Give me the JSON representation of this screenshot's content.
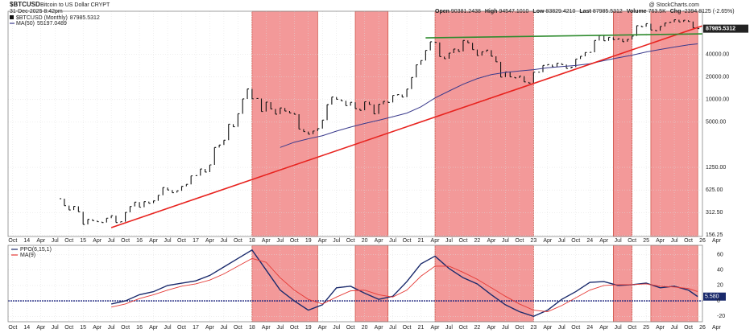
{
  "chart_data": {
    "type": "price",
    "title": "$BTCUSD",
    "subtitle": "Bitcoin to US Dollar CRYPT",
    "date": "31-Dec-2025 8:42pm",
    "watermark": "@ StockCharts.com",
    "header": [
      {
        "label": "Open",
        "value": 90381.2438
      },
      {
        "label": "High",
        "value": 94547.101,
        "value_label": "94547.1010"
      },
      {
        "label": "Low",
        "value": 83829.421,
        "value_label": "83829.4210"
      },
      {
        "label": "Last",
        "value": 87985.5312
      },
      {
        "label": "Volume",
        "value": 763500,
        "value_label": "763.5K"
      },
      {
        "label": "Chg",
        "value": -2394.8125,
        "value_label": "-2394.8125 (-2.65%)"
      }
    ],
    "name": "$BTCUSD (Monthly)",
    "last_value": 87985.5312,
    "color": "#111111",
    "x": [
      "2014-08",
      "2014-09",
      "2014-10",
      "2014-11",
      "2014-12",
      "2015-01",
      "2015-02",
      "2015-03",
      "2015-04",
      "2015-05",
      "2015-06",
      "2015-07",
      "2015-08",
      "2015-09",
      "2015-10",
      "2015-11",
      "2015-12",
      "2016-01",
      "2016-02",
      "2016-03",
      "2016-04",
      "2016-05",
      "2016-06",
      "2016-07",
      "2016-08",
      "2016-09",
      "2016-10",
      "2016-11",
      "2016-12",
      "2017-01",
      "2017-02",
      "2017-03",
      "2017-04",
      "2017-05",
      "2017-06",
      "2017-07",
      "2017-08",
      "2017-09",
      "2017-10",
      "2017-11",
      "2017-12",
      "2018-01",
      "2018-02",
      "2018-03",
      "2018-04",
      "2018-05",
      "2018-06",
      "2018-07",
      "2018-08",
      "2018-09",
      "2018-10",
      "2018-11",
      "2018-12",
      "2019-01",
      "2019-02",
      "2019-03",
      "2019-04",
      "2019-05",
      "2019-06",
      "2019-07",
      "2019-08",
      "2019-09",
      "2019-10",
      "2019-11",
      "2019-12",
      "2020-01",
      "2020-02",
      "2020-03",
      "2020-04",
      "2020-05",
      "2020-06",
      "2020-07",
      "2020-08",
      "2020-09",
      "2020-10",
      "2020-11",
      "2020-12",
      "2021-01",
      "2021-02",
      "2021-03",
      "2021-04",
      "2021-05",
      "2021-06",
      "2021-07",
      "2021-08",
      "2021-09",
      "2021-10",
      "2021-11",
      "2021-12",
      "2022-01",
      "2022-02",
      "2022-03",
      "2022-04",
      "2022-05",
      "2022-06",
      "2022-07",
      "2022-08",
      "2022-09",
      "2022-10",
      "2022-11",
      "2022-12",
      "2023-01",
      "2023-02",
      "2023-03",
      "2023-04",
      "2023-05",
      "2023-06",
      "2023-07",
      "2023-08",
      "2023-09",
      "2023-10",
      "2023-11",
      "2023-12",
      "2024-01",
      "2024-02",
      "2024-03",
      "2024-04",
      "2024-05",
      "2024-06",
      "2024-07",
      "2024-08",
      "2024-09",
      "2024-10",
      "2024-11",
      "2024-12",
      "2025-01",
      "2025-02",
      "2025-03",
      "2025-04",
      "2025-05",
      "2025-06",
      "2025-07",
      "2025-08",
      "2025-09",
      "2025-10",
      "2025-11",
      "2025-12"
    ],
    "values": [
      478,
      386,
      338,
      378,
      320,
      217,
      254,
      244,
      236,
      230,
      263,
      284,
      230,
      236,
      314,
      377,
      430,
      368,
      437,
      416,
      448,
      531,
      673,
      624,
      575,
      609,
      698,
      742,
      963,
      970,
      1190,
      1080,
      1348,
      2300,
      2480,
      2875,
      4700,
      4340,
      6460,
      10200,
      13860,
      10220,
      10330,
      6930,
      9240,
      7490,
      6390,
      7730,
      7030,
      6630,
      6370,
      4040,
      3740,
      3460,
      3810,
      4100,
      5320,
      8570,
      10820,
      10080,
      9630,
      8290,
      9200,
      7570,
      7190,
      9350,
      8600,
      6440,
      8660,
      9460,
      9140,
      11350,
      11660,
      10780,
      13800,
      19700,
      29000,
      33100,
      45200,
      58800,
      57700,
      37300,
      35000,
      41600,
      47100,
      43800,
      61300,
      57000,
      46300,
      38500,
      43200,
      45500,
      37700,
      31800,
      19900,
      23300,
      20050,
      19430,
      20500,
      17170,
      16550,
      23140,
      23150,
      28480,
      29250,
      27220,
      30480,
      29230,
      25940,
      26970,
      34670,
      37720,
      42280,
      42580,
      61200,
      71300,
      60650,
      67500,
      62700,
      64600,
      58970,
      63300,
      70200,
      96400,
      93400,
      102400,
      84400,
      82500,
      94200,
      104600,
      107100,
      115700,
      108200,
      114000,
      109500,
      90400,
      87985.5312
    ],
    "ma": {
      "name": "MA(50)",
      "last_value": 55197.0489,
      "color": "#3a3a8c",
      "x": [
        "2018-07",
        "2018-10",
        "2019-01",
        "2019-04",
        "2019-07",
        "2019-10",
        "2020-01",
        "2020-04",
        "2020-07",
        "2020-10",
        "2021-01",
        "2021-04",
        "2021-07",
        "2021-10",
        "2022-01",
        "2022-04",
        "2022-07",
        "2022-10",
        "2023-01",
        "2023-04",
        "2023-07",
        "2023-10",
        "2024-01",
        "2024-04",
        "2024-07",
        "2024-10",
        "2025-01",
        "2025-04",
        "2025-07",
        "2025-10",
        "2025-12"
      ],
      "values": [
        2300,
        2700,
        3000,
        3300,
        3800,
        4300,
        4800,
        5300,
        5900,
        6600,
        8000,
        10500,
        13000,
        16000,
        19000,
        21500,
        23000,
        24000,
        25000,
        26500,
        27500,
        28500,
        30000,
        33000,
        36000,
        39000,
        43000,
        46500,
        50000,
        53500,
        55197.0489
      ]
    },
    "log_scale": true,
    "grid": true,
    "xlim": [
      "2013-09",
      "2026-01"
    ],
    "ylim": [
      150,
      150000
    ],
    "yticks": [
      156.25,
      {
        "value": 312.5,
        "label": "312.50"
      },
      {
        "value": 625,
        "label": "625.00"
      },
      {
        "value": 1250,
        "label": "1250.00"
      },
      {
        "value": 5000,
        "label": "5000.00"
      },
      {
        "value": 10000,
        "label": "10000.00"
      },
      {
        "value": 20000,
        "label": "20000.00"
      },
      {
        "value": 40000,
        "label": "40000.00"
      }
    ],
    "xticks": [
      {
        "value": "2013-10",
        "label": "Oct"
      },
      {
        "value": "2014-01",
        "label": "14"
      },
      {
        "value": "2014-04",
        "label": "Apr"
      },
      {
        "value": "2014-07",
        "label": "Jul"
      },
      {
        "value": "2014-10",
        "label": "Oct"
      },
      {
        "value": "2015-01",
        "label": "15"
      },
      {
        "value": "2015-04",
        "label": "Apr"
      },
      {
        "value": "2015-07",
        "label": "Jul"
      },
      {
        "value": "2015-10",
        "label": "Oct"
      },
      {
        "value": "2016-01",
        "label": "16"
      },
      {
        "value": "2016-04",
        "label": "Apr"
      },
      {
        "value": "2016-07",
        "label": "Jul"
      },
      {
        "value": "2016-10",
        "label": "Oct"
      },
      {
        "value": "2017-01",
        "label": "17"
      },
      {
        "value": "2017-04",
        "label": "Apr"
      },
      {
        "value": "2017-07",
        "label": "Jul"
      },
      {
        "value": "2017-10",
        "label": "Oct"
      },
      {
        "value": "2018-01",
        "label": "18"
      },
      {
        "value": "2018-04",
        "label": "Apr"
      },
      {
        "value": "2018-07",
        "label": "Jul"
      },
      {
        "value": "2018-10",
        "label": "Oct"
      },
      {
        "value": "2019-01",
        "label": "19"
      },
      {
        "value": "2019-04",
        "label": "Apr"
      },
      {
        "value": "2019-07",
        "label": "Jul"
      },
      {
        "value": "2019-10",
        "label": "Oct"
      },
      {
        "value": "2020-01",
        "label": "20"
      },
      {
        "value": "2020-04",
        "label": "Apr"
      },
      {
        "value": "2020-07",
        "label": "Jul"
      },
      {
        "value": "2020-10",
        "label": "Oct"
      },
      {
        "value": "2021-01",
        "label": "21"
      },
      {
        "value": "2021-04",
        "label": "Apr"
      },
      {
        "value": "2021-07",
        "label": "Jul"
      },
      {
        "value": "2021-10",
        "label": "Oct"
      },
      {
        "value": "2022-01",
        "label": "22"
      },
      {
        "value": "2022-04",
        "label": "Apr"
      },
      {
        "value": "2022-07",
        "label": "Jul"
      },
      {
        "value": "2022-10",
        "label": "Oct"
      },
      {
        "value": "2023-01",
        "label": "23"
      },
      {
        "value": "2023-04",
        "label": "Apr"
      },
      {
        "value": "2023-07",
        "label": "Jul"
      },
      {
        "value": "2023-10",
        "label": "Oct"
      },
      {
        "value": "2024-01",
        "label": "24"
      },
      {
        "value": "2024-04",
        "label": "Apr"
      },
      {
        "value": "2024-07",
        "label": "Jul"
      },
      {
        "value": "2024-10",
        "label": "Oct"
      },
      {
        "value": "2025-01",
        "label": "25"
      },
      {
        "value": "2025-04",
        "label": "Apr"
      },
      {
        "value": "2025-07",
        "label": "Jul"
      },
      {
        "value": "2025-10",
        "label": "Oct"
      },
      {
        "value": "2026-01",
        "label": "26"
      },
      {
        "value": "2026-04",
        "label": "Apr"
      }
    ],
    "shaded_ranges": [
      {
        "start": "2018-01",
        "end": "2019-03"
      },
      {
        "start": "2019-11",
        "end": "2020-06"
      },
      {
        "start": "2021-04",
        "end": "2023-01"
      },
      {
        "start": "2024-06",
        "end": "2024-10"
      },
      {
        "start": "2025-02",
        "end": "2025-12"
      }
    ],
    "shade_color": "#f08080",
    "trendlines": [
      {
        "color": "#e8231f",
        "x": [
          "2015-07",
          "2026-01"
        ],
        "y": [
          197,
          96000
        ]
      },
      {
        "color": "#2e8b2e",
        "x": [
          "2021-02",
          "2026-01"
        ],
        "y": [
          66300,
          75000
        ]
      }
    ],
    "ppo": {
      "ylim": [
        -27,
        72
      ],
      "yticks": [
        -20,
        0,
        20,
        40,
        60
      ],
      "zero_color": "#1a237e",
      "last_value": 5.58,
      "last_label": "5.580",
      "series": [
        {
          "name": "PPO(6,15,1)",
          "color": "#1a2a6c",
          "x": [
            "2015-07",
            "2015-10",
            "2016-01",
            "2016-04",
            "2016-07",
            "2016-10",
            "2017-01",
            "2017-04",
            "2017-07",
            "2017-10",
            "2018-01",
            "2018-04",
            "2018-07",
            "2018-10",
            "2019-01",
            "2019-04",
            "2019-07",
            "2019-10",
            "2020-01",
            "2020-04",
            "2020-07",
            "2020-10",
            "2021-01",
            "2021-04",
            "2021-07",
            "2021-10",
            "2022-01",
            "2022-04",
            "2022-07",
            "2022-10",
            "2023-01",
            "2023-04",
            "2023-07",
            "2023-10",
            "2024-01",
            "2024-04",
            "2024-07",
            "2024-10",
            "2025-01",
            "2025-04",
            "2025-07",
            "2025-10",
            "2025-12"
          ],
          "values": [
            -4,
            0,
            8,
            12,
            20,
            23,
            26,
            33,
            44,
            55,
            66,
            40,
            14,
            0,
            -12,
            -5,
            17,
            19,
            10,
            2,
            6,
            25,
            48,
            58,
            42,
            30,
            22,
            8,
            -5,
            -14,
            -20,
            -12,
            2,
            12,
            24,
            25,
            20,
            21,
            23,
            17,
            19,
            14,
            5.58
          ]
        },
        {
          "name": "MA(9)",
          "color": "#e53935",
          "x": [
            "2015-07",
            "2015-10",
            "2016-01",
            "2016-04",
            "2016-07",
            "2016-10",
            "2017-01",
            "2017-04",
            "2017-07",
            "2017-10",
            "2018-01",
            "2018-04",
            "2018-07",
            "2018-10",
            "2019-01",
            "2019-04",
            "2019-07",
            "2019-10",
            "2020-01",
            "2020-04",
            "2020-07",
            "2020-10",
            "2021-01",
            "2021-04",
            "2021-07",
            "2021-10",
            "2022-01",
            "2022-04",
            "2022-07",
            "2022-10",
            "2023-01",
            "2023-04",
            "2023-07",
            "2023-10",
            "2024-01",
            "2024-04",
            "2024-07",
            "2024-10",
            "2025-01",
            "2025-04",
            "2025-07",
            "2025-10",
            "2025-12"
          ],
          "values": [
            -8,
            -4,
            3,
            8,
            14,
            19,
            22,
            27,
            35,
            45,
            55,
            50,
            30,
            14,
            2,
            -4,
            5,
            13,
            14,
            8,
            5,
            14,
            32,
            45,
            45,
            37,
            28,
            17,
            6,
            -4,
            -12,
            -14,
            -6,
            4,
            14,
            20,
            21,
            21,
            22,
            19,
            18,
            16,
            12
          ]
        }
      ]
    }
  }
}
